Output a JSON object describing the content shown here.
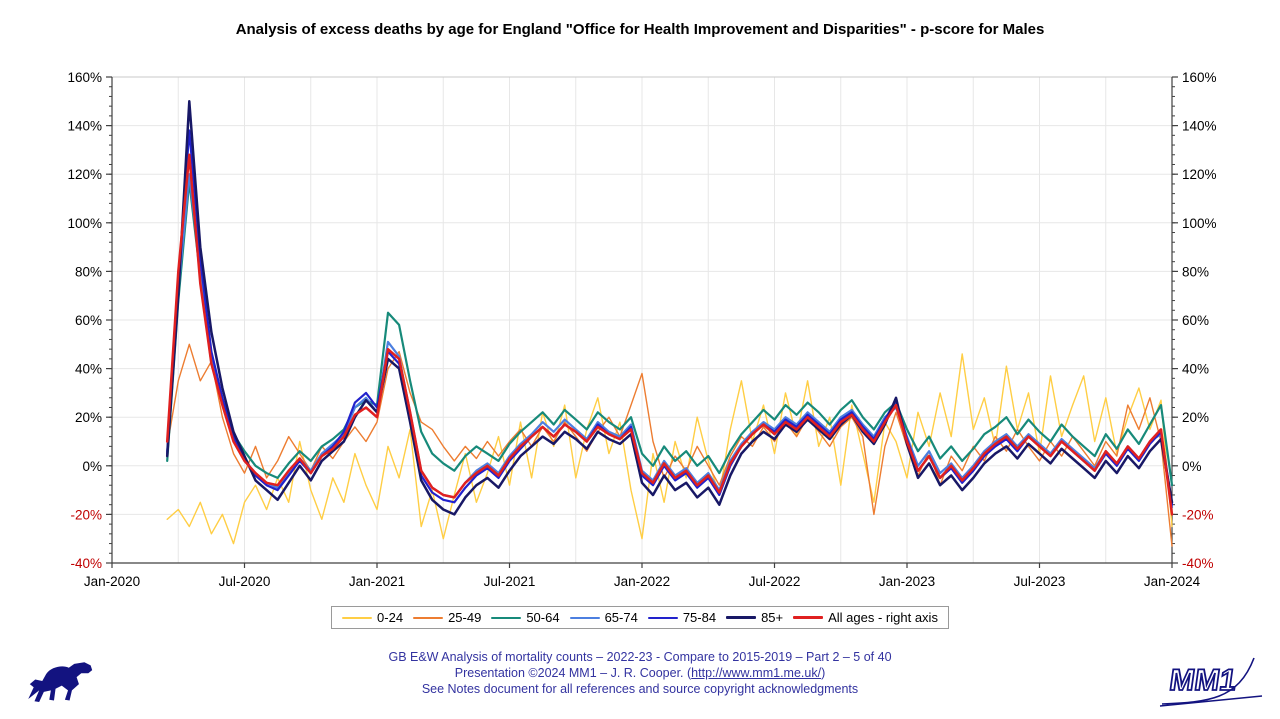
{
  "title": "Analysis of excess deaths by age for England \"Office for Health Improvement and Disparities\" - p-score for Males",
  "chart_data": {
    "type": "line",
    "title": "Analysis of excess deaths by age for England \"Office for Health Improvement and Disparities\" - p-score for Males",
    "x_axis": {
      "start": "Jan-2020",
      "end": "Jan-2024",
      "tick_labels": [
        "Jan-2020",
        "Jul-2020",
        "Jan-2021",
        "Jul-2021",
        "Jan-2022",
        "Jul-2022",
        "Jan-2023",
        "Jul-2023",
        "Jan-2024"
      ],
      "tick_months": [
        0,
        6,
        12,
        18,
        24,
        30,
        36,
        42,
        48
      ],
      "gridline_every_months": 3
    },
    "y_axis": {
      "tick_labels": [
        "160%",
        "140%",
        "120%",
        "100%",
        "80%",
        "60%",
        "40%",
        "20%",
        "0%",
        "-20%",
        "-40%"
      ],
      "tick_values": [
        160,
        140,
        120,
        100,
        80,
        60,
        40,
        20,
        0,
        -20,
        -40
      ],
      "ylim": [
        -40,
        160
      ],
      "unit": "%",
      "dual_axis": true,
      "positive_label_color": "#000000",
      "negative_label_color": "#C00000",
      "minor_tick_step": 4
    },
    "grid": {
      "horizontal": true,
      "vertical": true,
      "color": "#e7e7e7"
    },
    "legend_position": "bottom-center-boxed",
    "sampling": "values sampled every 0.5 month from Jan-2020 (month 0) to Jan-2024 (month 48); leading nulls = no data before mid-Mar-2020; values are p-score percents read from the plot",
    "series": [
      {
        "name": "0-24",
        "color": "#FFCE45",
        "width": 1.4,
        "values": [
          null,
          null,
          null,
          null,
          null,
          -22,
          -18,
          -25,
          -15,
          -28,
          -20,
          -32,
          -15,
          -8,
          -18,
          -5,
          -15,
          10,
          -10,
          -22,
          -5,
          -15,
          5,
          -8,
          -18,
          8,
          -5,
          15,
          -25,
          -10,
          -30,
          -12,
          5,
          -15,
          -3,
          12,
          -8,
          18,
          -5,
          22,
          8,
          25,
          -5,
          15,
          28,
          5,
          18,
          -10,
          -30,
          5,
          -15,
          10,
          -5,
          20,
          2,
          -12,
          15,
          35,
          10,
          25,
          5,
          30,
          12,
          35,
          8,
          20,
          -8,
          25,
          5,
          -15,
          18,
          10,
          -5,
          22,
          8,
          30,
          12,
          46,
          15,
          28,
          8,
          41,
          15,
          30,
          5,
          37,
          12,
          25,
          37,
          10,
          28,
          5,
          20,
          32,
          15,
          27,
          -25
        ]
      },
      {
        "name": "25-49",
        "color": "#ED7D31",
        "width": 1.4,
        "values": [
          null,
          null,
          null,
          null,
          null,
          8,
          35,
          50,
          35,
          43,
          20,
          5,
          -3,
          8,
          -5,
          2,
          12,
          5,
          -2,
          8,
          3,
          10,
          16,
          10,
          18,
          40,
          47,
          30,
          18,
          15,
          8,
          2,
          8,
          3,
          10,
          4,
          10,
          15,
          8,
          16,
          10,
          18,
          12,
          6,
          14,
          20,
          12,
          25,
          38,
          10,
          -5,
          4,
          -2,
          8,
          0,
          -8,
          4,
          12,
          8,
          16,
          10,
          18,
          12,
          20,
          14,
          8,
          16,
          20,
          12,
          -20,
          8,
          22,
          8,
          -4,
          6,
          -8,
          4,
          -2,
          8,
          2,
          12,
          6,
          15,
          8,
          2,
          10,
          4,
          12,
          6,
          0,
          10,
          4,
          25,
          15,
          28,
          10,
          -33
        ]
      },
      {
        "name": "50-64",
        "color": "#178A7A",
        "width": 2.2,
        "values": [
          null,
          null,
          null,
          null,
          null,
          2,
          68,
          117,
          78,
          42,
          26,
          13,
          6,
          0,
          -3,
          -5,
          1,
          6,
          2,
          8,
          11,
          15,
          24,
          27,
          25,
          63,
          58,
          35,
          14,
          5,
          1,
          -2,
          4,
          8,
          5,
          2,
          9,
          14,
          18,
          22,
          17,
          23,
          19,
          15,
          22,
          18,
          15,
          20,
          5,
          0,
          8,
          2,
          6,
          0,
          4,
          -3,
          6,
          13,
          18,
          23,
          19,
          25,
          21,
          26,
          22,
          17,
          23,
          27,
          20,
          15,
          22,
          26,
          15,
          6,
          12,
          3,
          8,
          2,
          7,
          13,
          16,
          20,
          13,
          19,
          14,
          10,
          17,
          12,
          8,
          4,
          13,
          7,
          15,
          9,
          17,
          25,
          -8
        ]
      },
      {
        "name": "65-74",
        "color": "#4C7FE0",
        "width": 2.2,
        "values": [
          null,
          null,
          null,
          null,
          null,
          6,
          72,
          120,
          80,
          44,
          26,
          11,
          2,
          -3,
          -7,
          -9,
          -3,
          3,
          -2,
          5,
          9,
          13,
          24,
          28,
          22,
          51,
          45,
          22,
          -2,
          -9,
          -12,
          -13,
          -7,
          -2,
          1,
          -3,
          4,
          9,
          13,
          18,
          14,
          19,
          15,
          11,
          18,
          14,
          12,
          17,
          -2,
          -6,
          2,
          -4,
          -1,
          -7,
          -3,
          -10,
          2,
          9,
          14,
          18,
          15,
          20,
          17,
          22,
          18,
          14,
          20,
          23,
          17,
          12,
          20,
          24,
          12,
          0,
          6,
          -3,
          1,
          -5,
          0,
          6,
          10,
          13,
          8,
          13,
          9,
          5,
          11,
          7,
          3,
          -1,
          6,
          1,
          8,
          3,
          10,
          13,
          -17
        ]
      },
      {
        "name": "75-84",
        "color": "#2222CC",
        "width": 2.2,
        "values": [
          null,
          null,
          null,
          null,
          null,
          5,
          75,
          138,
          85,
          47,
          28,
          12,
          3,
          -4,
          -8,
          -10,
          -4,
          2,
          -3,
          4,
          8,
          14,
          26,
          30,
          24,
          47,
          42,
          20,
          -4,
          -11,
          -14,
          -15,
          -9,
          -4,
          -1,
          -5,
          2,
          7,
          12,
          16,
          12,
          17,
          14,
          10,
          17,
          13,
          11,
          16,
          -4,
          -8,
          0,
          -6,
          -3,
          -9,
          -5,
          -12,
          0,
          8,
          13,
          17,
          14,
          19,
          16,
          21,
          17,
          13,
          19,
          22,
          16,
          11,
          19,
          27,
          11,
          -2,
          4,
          -5,
          -1,
          -7,
          -2,
          4,
          8,
          11,
          6,
          12,
          8,
          4,
          10,
          6,
          2,
          -2,
          5,
          0,
          7,
          2,
          9,
          14,
          -16
        ]
      },
      {
        "name": "85+",
        "color": "#181866",
        "width": 2.5,
        "values": [
          null,
          null,
          null,
          null,
          null,
          4,
          70,
          150,
          90,
          55,
          32,
          14,
          4,
          -6,
          -10,
          -14,
          -7,
          0,
          -6,
          2,
          6,
          10,
          20,
          27,
          22,
          44,
          40,
          18,
          -6,
          -14,
          -18,
          -20,
          -13,
          -8,
          -5,
          -9,
          -2,
          4,
          8,
          12,
          9,
          14,
          11,
          7,
          14,
          11,
          9,
          13,
          -7,
          -12,
          -4,
          -10,
          -7,
          -13,
          -9,
          -16,
          -4,
          5,
          10,
          14,
          11,
          17,
          14,
          19,
          15,
          11,
          17,
          21,
          14,
          9,
          17,
          28,
          9,
          -5,
          1,
          -8,
          -4,
          -10,
          -5,
          1,
          5,
          8,
          3,
          9,
          5,
          1,
          7,
          3,
          -1,
          -5,
          2,
          -3,
          4,
          -1,
          6,
          11,
          -15
        ]
      },
      {
        "name": "All ages - right axis",
        "color": "#E02020",
        "width": 2.5,
        "values": [
          null,
          null,
          null,
          null,
          null,
          10,
          80,
          128,
          75,
          42,
          25,
          10,
          2,
          -3,
          -7,
          -8,
          -2,
          3,
          -3,
          4,
          7,
          12,
          21,
          24,
          20,
          48,
          44,
          22,
          -2,
          -9,
          -12,
          -13,
          -7,
          -3,
          0,
          -4,
          3,
          8,
          12,
          16,
          12,
          17,
          14,
          10,
          16,
          13,
          11,
          15,
          -3,
          -7,
          1,
          -5,
          -2,
          -8,
          -4,
          -11,
          1,
          8,
          13,
          17,
          13,
          18,
          15,
          20,
          16,
          12,
          18,
          21,
          15,
          10,
          18,
          25,
          10,
          -2,
          4,
          -5,
          0,
          -6,
          -1,
          5,
          9,
          12,
          7,
          12,
          8,
          4,
          10,
          6,
          2,
          -2,
          6,
          1,
          8,
          3,
          10,
          15,
          -20
        ]
      }
    ]
  },
  "footer": {
    "line1": "GB E&W Analysis of mortality counts – 2022-23 - Compare to 2015-2019 – Part 2 – 5 of 40",
    "line2_prefix": "Presentation ©2024 MM1 – J. R. Cooper. (",
    "line2_link": "http://www.mm1.me.uk/",
    "line2_suffix": ")",
    "line3": "See Notes document for all references and source copyright acknowledgments",
    "color": "#3333A0"
  },
  "logos": {
    "dog": "dog-silhouette",
    "mm1_text": "MM1",
    "color": "#131380"
  }
}
